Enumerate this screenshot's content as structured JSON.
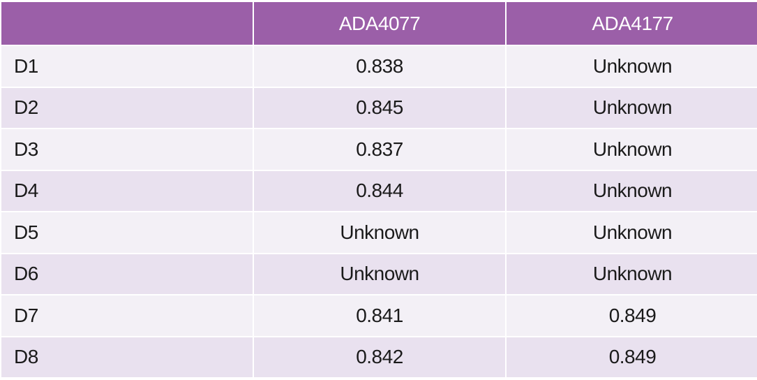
{
  "table": {
    "columns": [
      "ADA4077",
      "ADA4177"
    ],
    "rows": [
      [
        "D1",
        0.838,
        "Unknown"
      ],
      [
        "D2",
        0.845,
        "Unknown"
      ],
      [
        "D3",
        0.837,
        "Unknown"
      ],
      [
        "D4",
        0.844,
        "Unknown"
      ],
      [
        "D5",
        "Unknown",
        "Unknown"
      ],
      [
        "D6",
        "Unknown",
        "Unknown"
      ],
      [
        "D7",
        0.841,
        0.849
      ],
      [
        "D8",
        0.842,
        0.849
      ]
    ]
  }
}
